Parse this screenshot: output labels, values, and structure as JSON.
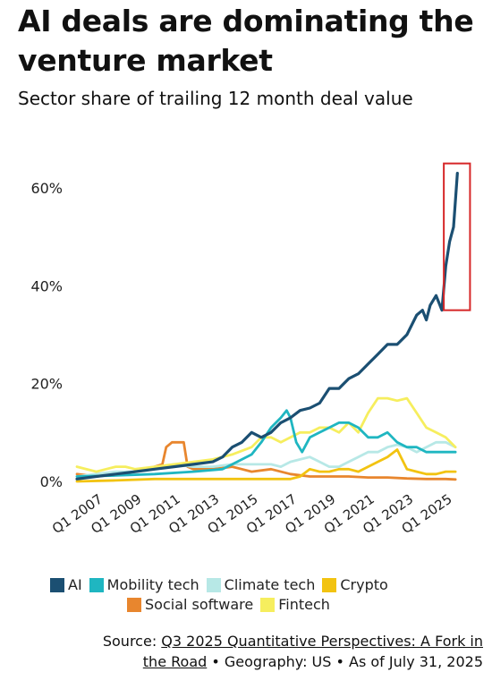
{
  "chart_data": {
    "type": "line",
    "title": "AI deals are dominating the venture market",
    "subtitle": "Sector share of trailing 12 month deal value",
    "y_tick_labels": [
      "0%",
      "20%",
      "40%",
      "60%"
    ],
    "x_tick_labels": [
      "Q1 2007",
      "Q1 2009",
      "Q1 2011",
      "Q1 2013",
      "Q1 2015",
      "Q1 2017",
      "Q1 2019",
      "Q1 2021",
      "Q1 2023",
      "Q1 2025"
    ],
    "xlim": [
      2006.0,
      2026.0
    ],
    "ylim": [
      0,
      65
    ],
    "grid": false,
    "legend_position": "bottom",
    "highlight": {
      "x_range": [
        2024.9,
        2026.25
      ],
      "y_range": [
        35,
        65
      ],
      "color": "#d62728"
    },
    "series": [
      {
        "name": "AI",
        "color": "#1b4f72",
        "x": [
          2006.0,
          2007.0,
          2008.0,
          2009.0,
          2010.0,
          2011.0,
          2012.0,
          2013.0,
          2013.5,
          2014.0,
          2014.5,
          2015.0,
          2015.5,
          2016.0,
          2016.5,
          2017.0,
          2017.5,
          2018.0,
          2018.5,
          2019.0,
          2019.5,
          2020.0,
          2020.5,
          2021.0,
          2021.5,
          2022.0,
          2022.5,
          2023.0,
          2023.5,
          2023.8,
          2024.0,
          2024.2,
          2024.5,
          2024.8,
          2025.0,
          2025.2,
          2025.4,
          2025.6
        ],
        "y": [
          0.5,
          1,
          1.5,
          2,
          2.5,
          3,
          3.5,
          4,
          5,
          7,
          8,
          10,
          9,
          10,
          12,
          13,
          14.5,
          15,
          16,
          19,
          19,
          21,
          22,
          24,
          26,
          28,
          28,
          30,
          34,
          35,
          33,
          36,
          38,
          35,
          44,
          49,
          52,
          63
        ]
      },
      {
        "name": "Mobility tech",
        "color": "#1fb6c1",
        "x": [
          2006.0,
          2008.0,
          2010.0,
          2012.0,
          2013.5,
          2014.0,
          2015.0,
          2015.5,
          2016.0,
          2016.5,
          2016.8,
          2017.0,
          2017.3,
          2017.6,
          2018.0,
          2018.5,
          2019.0,
          2019.5,
          2020.0,
          2020.5,
          2021.0,
          2021.5,
          2022.0,
          2022.5,
          2023.0,
          2023.5,
          2024.0,
          2024.5,
          2025.0,
          2025.5
        ],
        "y": [
          1,
          1.2,
          1.5,
          2,
          2.5,
          3.5,
          5.5,
          8,
          11,
          13,
          14.5,
          13,
          8,
          6,
          9,
          10,
          11,
          12,
          12,
          11,
          9,
          9,
          10,
          8,
          7,
          7,
          6,
          6,
          6,
          6
        ]
      },
      {
        "name": "Climate tech",
        "color": "#b7e8e6",
        "x": [
          2006.0,
          2007.0,
          2008.0,
          2009.0,
          2010.0,
          2011.0,
          2012.0,
          2013.0,
          2014.0,
          2015.0,
          2016.0,
          2016.5,
          2017.0,
          2017.5,
          2018.0,
          2018.5,
          2019.0,
          2019.5,
          2020.0,
          2020.5,
          2021.0,
          2021.5,
          2022.0,
          2022.5,
          2023.0,
          2023.5,
          2024.0,
          2024.5,
          2025.0,
          2025.5
        ],
        "y": [
          1,
          1.5,
          2,
          2,
          2.5,
          3.5,
          3,
          3,
          3.5,
          3.5,
          3.5,
          3,
          4,
          4.5,
          5,
          4,
          3,
          3,
          4,
          5,
          6,
          6,
          7,
          7.5,
          7,
          6,
          7,
          8,
          8,
          7
        ]
      },
      {
        "name": "Crypto",
        "color": "#f2c311",
        "x": [
          2006.0,
          2008.0,
          2010.0,
          2012.0,
          2014.0,
          2016.0,
          2017.0,
          2017.5,
          2018.0,
          2018.5,
          2019.0,
          2019.5,
          2020.0,
          2020.5,
          2021.0,
          2021.5,
          2022.0,
          2022.5,
          2023.0,
          2023.5,
          2024.0,
          2024.5,
          2025.0,
          2025.5
        ],
        "y": [
          0,
          0.2,
          0.5,
          0.5,
          0.5,
          0.5,
          0.5,
          1,
          2.5,
          2,
          2,
          2.5,
          2.5,
          2,
          3,
          4,
          5,
          6.5,
          2.5,
          2,
          1.5,
          1.5,
          2,
          2
        ]
      },
      {
        "name": "Social software",
        "color": "#e8862e",
        "x": [
          2006.0,
          2007.0,
          2008.0,
          2009.0,
          2009.5,
          2010.0,
          2010.4,
          2010.6,
          2010.9,
          2011.2,
          2011.5,
          2011.7,
          2012.0,
          2013.0,
          2014.0,
          2014.5,
          2015.0,
          2016.0,
          2017.0,
          2018.0,
          2019.0,
          2020.0,
          2021.0,
          2022.0,
          2023.0,
          2024.0,
          2025.0,
          2025.5
        ],
        "y": [
          1.5,
          1,
          1.5,
          2,
          2.5,
          3,
          3.5,
          7,
          8,
          8,
          8,
          3,
          2.5,
          2.5,
          3,
          2.5,
          2,
          2.5,
          1.5,
          1,
          1,
          1,
          0.8,
          0.8,
          0.6,
          0.5,
          0.5,
          0.4
        ]
      },
      {
        "name": "Fintech",
        "color": "#f6ee5e",
        "x": [
          2006.0,
          2007.0,
          2007.5,
          2008.0,
          2008.5,
          2009.0,
          2010.0,
          2011.0,
          2012.0,
          2013.0,
          2014.0,
          2015.0,
          2015.5,
          2016.0,
          2016.5,
          2017.0,
          2017.5,
          2018.0,
          2018.5,
          2019.0,
          2019.5,
          2020.0,
          2020.5,
          2021.0,
          2021.5,
          2022.0,
          2022.5,
          2023.0,
          2023.5,
          2024.0,
          2024.5,
          2025.0,
          2025.5
        ],
        "y": [
          3,
          2,
          2.5,
          3,
          3,
          2.5,
          3,
          3.5,
          4,
          4.5,
          5.5,
          7,
          9,
          9,
          8,
          9,
          10,
          10,
          11,
          11,
          10,
          12,
          10,
          14,
          17,
          17,
          16.5,
          17,
          14,
          11,
          10,
          9,
          7
        ]
      }
    ]
  },
  "legend": {
    "items": [
      {
        "label": "AI",
        "color": "#1b4f72"
      },
      {
        "label": "Mobility tech",
        "color": "#1fb6c1"
      },
      {
        "label": "Climate tech",
        "color": "#b7e8e6"
      },
      {
        "label": "Crypto",
        "color": "#f2c311"
      },
      {
        "label": "Social software",
        "color": "#e8862e"
      },
      {
        "label": "Fintech",
        "color": "#f6ee5e"
      }
    ]
  },
  "source": {
    "prefix": "Source: ",
    "link_text_1": "Q3 2025 Quantitative Perspectives: A Fork in",
    "link_text_2": "the Road",
    "suffix": " • Geography: US • As of July 31, 2025"
  }
}
